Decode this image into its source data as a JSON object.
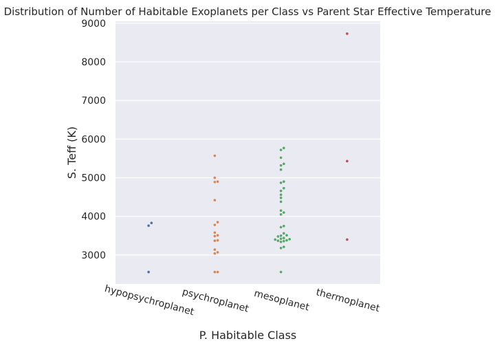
{
  "chart_data": {
    "type": "scatter",
    "title": "Distribution of Number of Habitable Exoplanets per Class vs Parent Star Effective Temperature",
    "xlabel": "P. Habitable Class",
    "ylabel": "S. Teff (K)",
    "categories": [
      "hypopsychroplanet",
      "psychroplanet",
      "mesoplanet",
      "thermoplanet"
    ],
    "ylim": [
      2250,
      9050
    ],
    "yticks": [
      3000,
      4000,
      5000,
      6000,
      7000,
      8000,
      9000
    ],
    "grid": true,
    "legend": "none",
    "colors": {
      "background": "#eaeaf2",
      "grid": "#ffffff",
      "series": [
        "#4c72b0",
        "#dd8452",
        "#55a868",
        "#c44e52"
      ]
    },
    "series": [
      {
        "category": "hypopsychroplanet",
        "values": [
          2560,
          3760,
          3830
        ]
      },
      {
        "category": "psychroplanet",
        "values": [
          2560,
          2560,
          3040,
          3070,
          3140,
          3370,
          3380,
          3490,
          3510,
          3580,
          3780,
          3850,
          4420,
          4890,
          4900,
          5000,
          5570
        ]
      },
      {
        "category": "mesoplanet",
        "values": [
          2560,
          3180,
          3210,
          3340,
          3360,
          3370,
          3380,
          3400,
          3410,
          3420,
          3440,
          3480,
          3500,
          3510,
          3560,
          3720,
          3750,
          4050,
          4100,
          4150,
          4380,
          4480,
          4560,
          4660,
          4730,
          4870,
          4900,
          5210,
          5320,
          5360,
          5520,
          5720,
          5770
        ]
      },
      {
        "category": "thermoplanet",
        "values": [
          3400,
          5430,
          8730
        ]
      }
    ]
  }
}
